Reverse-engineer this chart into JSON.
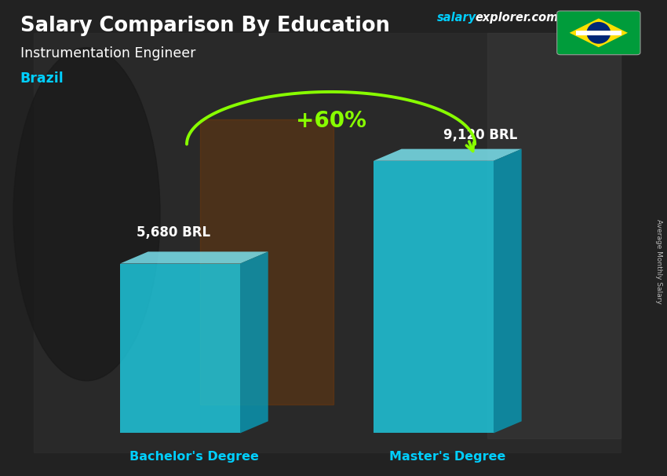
{
  "title_main": "Salary Comparison By Education",
  "title_sub": "Instrumentation Engineer",
  "title_country": "Brazil",
  "brand_salary": "salary",
  "brand_explorer": "explorer.com",
  "bar_labels": [
    "Bachelor's Degree",
    "Master's Degree"
  ],
  "bar_values": [
    5680,
    9120
  ],
  "bar_value_labels": [
    "5,680 BRL",
    "9,120 BRL"
  ],
  "bar_color_face": "#1ECBE1",
  "bar_color_top": "#7DE8F5",
  "bar_color_side": "#0899B5",
  "bar_alpha": 0.82,
  "pct_label": "+60%",
  "pct_color": "#88FF00",
  "bg_color": "#3a3a3a",
  "text_color_white": "#FFFFFF",
  "text_color_cyan": "#00CFFF",
  "text_color_gray": "#BBBBBB",
  "axis_label": "Average Monthly Salary",
  "bar_width": 0.18,
  "bar_positions": [
    0.27,
    0.65
  ],
  "ylim": [
    0,
    11000
  ],
  "fig_width": 8.5,
  "fig_height": 6.06,
  "flag_colors": {
    "green": "#009C3B",
    "yellow": "#FFDF00",
    "blue": "#002776",
    "white": "#FFFFFF"
  }
}
